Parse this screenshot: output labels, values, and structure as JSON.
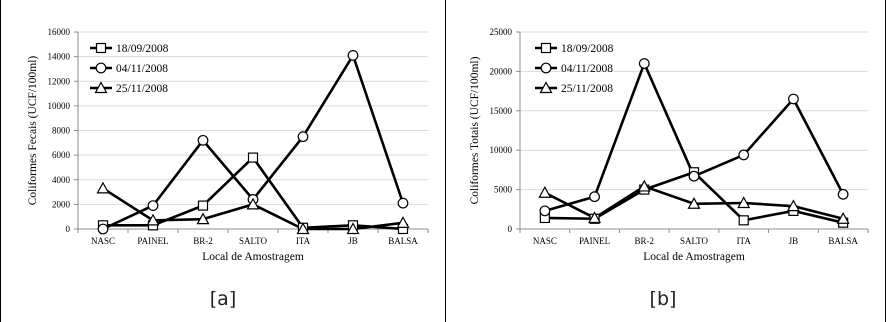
{
  "chart_data": [
    {
      "type": "line",
      "caption": "[a]",
      "xlabel": "Local de Amostragem",
      "ylabel": "Coliformes Fecais (UCF/100ml)",
      "ylim": [
        0,
        16000
      ],
      "yticks": [
        0,
        2000,
        4000,
        6000,
        8000,
        10000,
        12000,
        14000,
        16000
      ],
      "categories": [
        "NASC",
        "PAINEL",
        "BR-2",
        "SALTO",
        "ITA",
        "JB",
        "BALSA"
      ],
      "grid": true,
      "legend_position": "top-left",
      "series": [
        {
          "name": "18/09/2008",
          "marker": "square",
          "values": [
            300,
            300,
            1900,
            5800,
            100,
            300,
            0
          ]
        },
        {
          "name": "04/11/2008",
          "marker": "circle",
          "values": [
            0,
            1900,
            7200,
            2400,
            7500,
            14100,
            2100
          ]
        },
        {
          "name": "25/11/2008",
          "marker": "triangle",
          "values": [
            3300,
            700,
            800,
            2000,
            0,
            0,
            500
          ]
        }
      ]
    },
    {
      "type": "line",
      "caption": "[b]",
      "xlabel": "Local de Amostragem",
      "ylabel": "Coliformes Totais (UCF/100ml)",
      "ylim": [
        0,
        25000
      ],
      "yticks": [
        0,
        5000,
        10000,
        15000,
        20000,
        25000
      ],
      "categories": [
        "NASC",
        "PAINEL",
        "BR-2",
        "SALTO",
        "ITA",
        "JB",
        "BALSA"
      ],
      "grid": true,
      "legend_position": "top-left",
      "series": [
        {
          "name": "18/09/2008",
          "marker": "square",
          "values": [
            1400,
            1300,
            5000,
            7200,
            1100,
            2300,
            800
          ]
        },
        {
          "name": "04/11/2008",
          "marker": "circle",
          "values": [
            2300,
            4100,
            21000,
            6700,
            9400,
            16500,
            4400
          ]
        },
        {
          "name": "25/11/2008",
          "marker": "triangle",
          "values": [
            4600,
            1400,
            5400,
            3200,
            3300,
            2900,
            1300
          ]
        }
      ]
    }
  ]
}
